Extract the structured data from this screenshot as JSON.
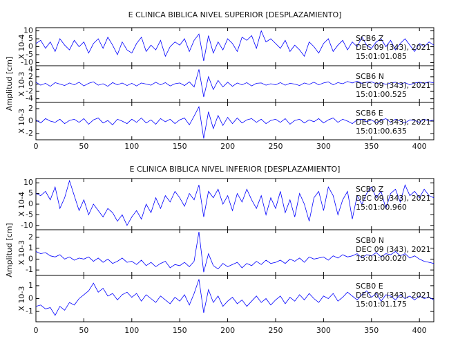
{
  "chart_data": [
    {
      "type": "line",
      "title": "E CLINICA BIBLICA NIVEL SUPERIOR [DESPLAZAMIENTO]",
      "ylabel": "Amplitud [cm]",
      "color": "#0000ff",
      "xlim": [
        0,
        415
      ],
      "xticks": [
        0,
        50,
        100,
        150,
        200,
        250,
        300,
        350,
        400
      ],
      "x": [
        0,
        5,
        10,
        15,
        20,
        25,
        30,
        35,
        40,
        45,
        50,
        55,
        60,
        65,
        70,
        75,
        80,
        85,
        90,
        95,
        100,
        105,
        110,
        115,
        120,
        125,
        130,
        135,
        140,
        145,
        150,
        155,
        160,
        165,
        170,
        175,
        180,
        185,
        190,
        195,
        200,
        205,
        210,
        215,
        220,
        225,
        230,
        235,
        240,
        245,
        250,
        255,
        260,
        265,
        270,
        275,
        280,
        285,
        290,
        295,
        300,
        305,
        310,
        315,
        320,
        325,
        330,
        335,
        340,
        345,
        350,
        355,
        360,
        365,
        370,
        375,
        380,
        385,
        390,
        395,
        400,
        405,
        410,
        415
      ],
      "panels": [
        {
          "scale": "X 10-4",
          "ylim": [
            -12,
            12
          ],
          "yticks": [
            -10,
            -5,
            0,
            5,
            10
          ],
          "annotations": [
            "SCB6 Z",
            "DEC 09 (343), 2021",
            "15:01:01.085"
          ],
          "values": [
            2,
            4,
            -1,
            3,
            -3,
            5,
            1,
            -2,
            4,
            0,
            3,
            -4,
            2,
            5,
            -1,
            6,
            1,
            -5,
            3,
            -2,
            -4,
            2,
            6,
            -3,
            1,
            -2,
            4,
            -6,
            0,
            3,
            1,
            5,
            -3,
            4,
            8,
            -9,
            7,
            -4,
            3,
            -2,
            5,
            2,
            -3,
            6,
            4,
            7,
            -1,
            10,
            3,
            5,
            2,
            -1,
            4,
            -3,
            1,
            -2,
            -6,
            3,
            0,
            -4,
            2,
            5,
            -3,
            1,
            4,
            -2,
            3,
            0,
            6,
            1,
            -1,
            3,
            5,
            0,
            4,
            -2,
            2,
            5,
            1,
            -3,
            2,
            0,
            3,
            1
          ]
        },
        {
          "scale": "X 10-3",
          "ylim": [
            -5,
            5
          ],
          "yticks": [
            -4,
            -2,
            0,
            2,
            4
          ],
          "annotations": [
            "SCB6 N",
            "DEC 09 (343), 2021",
            "15:01:00.525"
          ],
          "values": [
            0.5,
            -0.3,
            0.2,
            -0.6,
            0.4,
            0,
            -0.4,
            0.3,
            -0.2,
            0.5,
            -0.5,
            0.2,
            0.6,
            -0.3,
            0.1,
            -0.6,
            0.4,
            -0.2,
            0.3,
            -0.4,
            0.2,
            -0.5,
            0.3,
            0,
            -0.3,
            0.5,
            -0.2,
            0.4,
            -0.5,
            0.1,
            0.3,
            -0.4,
            0.6,
            -0.8,
            4,
            -3.5,
            2,
            -1.5,
            1,
            -0.8,
            0.5,
            -0.6,
            0.3,
            -0.2,
            0.4,
            -0.5,
            0.2,
            0.3,
            -0.3,
            0.1,
            -0.2,
            0.4,
            -0.3,
            0.2,
            0,
            -0.4,
            0.3,
            -0.1,
            0.5,
            -0.2,
            0.3,
            0.6,
            -0.2,
            0.4,
            0.1,
            0.7,
            0.3,
            0.8,
            0.2,
            0.5,
            0.6,
            0.1,
            0.4,
            -0.1,
            0.3,
            0.5,
            0,
            0.4,
            -0.2,
            0.3,
            0.5,
            0.2,
            0.6,
            0.3
          ]
        },
        {
          "scale": "X 10-3",
          "ylim": [
            -3,
            3
          ],
          "yticks": [
            -2,
            0,
            2
          ],
          "annotations": [
            "SCB6 E",
            "DEC 09 (343), 2021",
            "15:01:00.635"
          ],
          "values": [
            0.2,
            -0.3,
            0.4,
            0,
            -0.2,
            0.3,
            -0.4,
            0.1,
            0.3,
            -0.2,
            0.4,
            -0.5,
            0.2,
            0.5,
            -0.3,
            0.1,
            -0.6,
            0.3,
            0,
            -0.4,
            0.3,
            -0.2,
            0.5,
            -0.3,
            0.2,
            -0.5,
            0.4,
            -0.1,
            0.3,
            -0.4,
            0.2,
            0.5,
            -0.6,
            0.8,
            2.3,
            -2.8,
            1.5,
            -1.2,
            0.9,
            -0.7,
            0.6,
            -0.4,
            0.5,
            -0.3,
            0.2,
            0.4,
            -0.2,
            0.3,
            -0.4,
            0.1,
            0.3,
            -0.2,
            0.4,
            -0.5,
            0.1,
            0.3,
            -0.3,
            0.2,
            -0.1,
            0.4,
            -0.3,
            0.2,
            0.5,
            -0.2,
            0.3,
            0,
            -0.4,
            0.2,
            0.3,
            -0.1,
            0.2,
            -0.3,
            0.1,
            0.4,
            -0.2,
            0.3,
            0,
            -0.3,
            0.2,
            0.1,
            -0.2,
            0.3,
            0,
            0.2
          ]
        }
      ]
    },
    {
      "type": "line",
      "title": "E CLINICA BIBLICA NIVEL INFERIOR [DESPLAZAMIENTO]",
      "ylabel": "Amplitud [cm]",
      "color": "#0000ff",
      "xlim": [
        0,
        415
      ],
      "xticks": [
        0,
        50,
        100,
        150,
        200,
        250,
        300,
        350,
        400
      ],
      "x": [
        0,
        5,
        10,
        15,
        20,
        25,
        30,
        35,
        40,
        45,
        50,
        55,
        60,
        65,
        70,
        75,
        80,
        85,
        90,
        95,
        100,
        105,
        110,
        115,
        120,
        125,
        130,
        135,
        140,
        145,
        150,
        155,
        160,
        165,
        170,
        175,
        180,
        185,
        190,
        195,
        200,
        205,
        210,
        215,
        220,
        225,
        230,
        235,
        240,
        245,
        250,
        255,
        260,
        265,
        270,
        275,
        280,
        285,
        290,
        295,
        300,
        305,
        310,
        315,
        320,
        325,
        330,
        335,
        340,
        345,
        350,
        355,
        360,
        365,
        370,
        375,
        380,
        385,
        390,
        395,
        400,
        405,
        410,
        415
      ],
      "panels": [
        {
          "scale": "X 10-4",
          "ylim": [
            -12,
            12
          ],
          "yticks": [
            -10,
            -5,
            0,
            5,
            10
          ],
          "annotations": [
            "SCB0 Z",
            "DEC 09 (343), 2021",
            "15:01:00.960"
          ],
          "values": [
            5,
            4,
            6,
            2,
            8,
            -2,
            3,
            11,
            4,
            -3,
            2,
            -5,
            0,
            -3,
            -6,
            -2,
            -4,
            -8,
            -5,
            -10,
            -6,
            -3,
            -7,
            0,
            -4,
            3,
            -2,
            4,
            1,
            6,
            3,
            -1,
            5,
            2,
            9,
            -6,
            6,
            3,
            7,
            0,
            4,
            -3,
            5,
            1,
            7,
            2,
            -2,
            4,
            -5,
            3,
            -2,
            6,
            -4,
            2,
            -6,
            5,
            0,
            -8,
            3,
            6,
            -3,
            8,
            4,
            -5,
            2,
            6,
            -7,
            4,
            0,
            5,
            8,
            3,
            6,
            -2,
            5,
            7,
            1,
            9,
            4,
            6,
            3,
            7,
            4,
            3
          ]
        },
        {
          "scale": "X 10-3",
          "ylim": [
            -1.5,
            2.7
          ],
          "yticks": [
            -1,
            0,
            1,
            2
          ],
          "annotations": [
            "SCB0 N",
            "DEC 09 (343), 2021",
            "15:01:00.020"
          ],
          "values": [
            0.7,
            0.5,
            0.6,
            0.3,
            0.2,
            0.4,
            0,
            0.2,
            -0.1,
            0.1,
            0,
            0.2,
            -0.2,
            0.1,
            -0.3,
            0,
            -0.4,
            -0.2,
            0.1,
            -0.3,
            -0.2,
            -0.5,
            -0.1,
            -0.6,
            -0.3,
            -0.7,
            -0.4,
            -0.2,
            -0.8,
            -0.5,
            -0.6,
            -0.3,
            -0.7,
            -0.2,
            2.5,
            -1.2,
            0.5,
            -0.6,
            -0.9,
            -0.4,
            -0.7,
            -0.5,
            -0.3,
            -0.8,
            -0.4,
            -0.6,
            -0.2,
            -0.5,
            -0.1,
            -0.4,
            -0.3,
            -0.1,
            -0.4,
            0,
            -0.2,
            0.1,
            -0.3,
            0.2,
            0,
            0.1,
            0.2,
            -0.1,
            0.3,
            0.1,
            0.4,
            0.2,
            0.3,
            0.5,
            0.1,
            0.4,
            0.3,
            0.6,
            0.2,
            0.5,
            0.4,
            0.7,
            0.3,
            0.5,
            0.1,
            0.3,
            0,
            -0.2,
            -0.3,
            -0.4
          ]
        },
        {
          "scale": "X 10-3",
          "ylim": [
            -1.8,
            1.8
          ],
          "yticks": [
            -1,
            0,
            1
          ],
          "annotations": [
            "SCB0 E",
            "DEC 09 (343), 2021",
            "15:01:01.175"
          ],
          "values": [
            -0.6,
            -0.5,
            -0.8,
            -0.7,
            -1.3,
            -0.6,
            -0.9,
            -0.3,
            -0.5,
            0,
            0.3,
            0.6,
            1.2,
            0.5,
            0.8,
            0.2,
            0.4,
            -0.1,
            0.3,
            0.5,
            0.1,
            0.4,
            -0.2,
            0.3,
            0,
            -0.3,
            0.2,
            -0.1,
            -0.4,
            0.1,
            -0.2,
            0.3,
            -0.5,
            0.4,
            1.5,
            -1.1,
            0.7,
            -0.3,
            0.2,
            -0.6,
            -0.2,
            0.1,
            -0.4,
            -0.1,
            -0.6,
            -0.2,
            0.2,
            -0.3,
            0,
            -0.5,
            -0.1,
            0.2,
            -0.4,
            0.1,
            -0.2,
            0.3,
            -0.1,
            0.4,
            0,
            -0.3,
            0.2,
            0,
            0.4,
            -0.2,
            0.1,
            0.5,
            0.2,
            -0.1,
            0.3,
            0.6,
            0.1,
            0.4,
            -0.2,
            0.3,
            0.2,
            -0.1,
            0.3,
            0,
            0.2,
            -0.1,
            0.2,
            0,
            0.1,
            -0.1
          ]
        }
      ]
    }
  ]
}
